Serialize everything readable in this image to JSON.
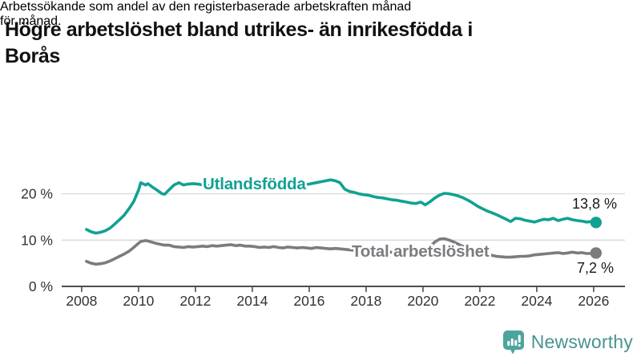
{
  "title": "Högre arbetslöshet bland utrikes- än inrikesfödda i Borås",
  "title_lines": [
    "Högre arbetslöshet bland utrikes- än inrikesfödda i",
    "Borås"
  ],
  "subtitle": "Arbetssökande som andel av den registerbaserade arbetskraften månad för månad.",
  "subtitle_lines": [
    "Arbetssökande som andel av den registerbaserade arbetskraften månad",
    "för månad."
  ],
  "branding": {
    "name": "Newsworthy",
    "icon": "newsworthy-bars-speech-bubble-icon",
    "color": "#47948e"
  },
  "colors": {
    "grid": "#d9d9d9",
    "axis": "#4d4d4d",
    "axis_text": "#333333",
    "value_text": "#1a1a1a",
    "series_teal": "#11a193",
    "series_gray": "#7b7b80"
  },
  "chart_data": {
    "type": "line",
    "title": "Högre arbetslöshet bland utrikes- än inrikesfödda i Borås",
    "subtitle": "Arbetssökande som andel av den registerbaserade arbetskraften månad för månad.",
    "unit": "%",
    "grid": "horizontal",
    "legend_position": "inline-labels",
    "xlim": [
      2007.3,
      2027.1
    ],
    "ylim": [
      0,
      24.6
    ],
    "x_tick_years": [
      2008,
      2010,
      2012,
      2014,
      2016,
      2018,
      2020,
      2022,
      2024,
      2026
    ],
    "x_ticks": [
      "2008",
      "2010",
      "2012",
      "2014",
      "2016",
      "2018",
      "2020",
      "2022",
      "2024",
      "2026"
    ],
    "y_ticks": [
      {
        "value": 0,
        "label": "0 %"
      },
      {
        "value": 10,
        "label": "10 %"
      },
      {
        "value": 20,
        "label": "20 %"
      }
    ],
    "x": [
      2008.17,
      2008.33,
      2008.5,
      2008.67,
      2008.83,
      2009.0,
      2009.17,
      2009.33,
      2009.5,
      2009.67,
      2009.83,
      2010.0,
      2010.08,
      2010.25,
      2010.33,
      2010.5,
      2010.67,
      2010.83,
      2010.92,
      2011.08,
      2011.25,
      2011.42,
      2011.58,
      2011.75,
      2011.92,
      2012.08,
      2012.25,
      2012.42,
      2012.58,
      2012.75,
      2012.92,
      2013.08,
      2013.25,
      2013.42,
      2013.58,
      2013.75,
      2013.92,
      2014.08,
      2014.25,
      2014.42,
      2014.58,
      2014.75,
      2014.92,
      2015.08,
      2015.25,
      2015.42,
      2015.58,
      2015.75,
      2015.92,
      2016.08,
      2016.25,
      2016.42,
      2016.58,
      2016.75,
      2016.92,
      2017.08,
      2017.25,
      2017.42,
      2017.58,
      2017.75,
      2017.92,
      2018.08,
      2018.25,
      2018.42,
      2018.58,
      2018.75,
      2018.92,
      2019.08,
      2019.25,
      2019.42,
      2019.58,
      2019.75,
      2019.92,
      2020.08,
      2020.25,
      2020.42,
      2020.58,
      2020.75,
      2020.92,
      2021.08,
      2021.25,
      2021.42,
      2021.58,
      2021.75,
      2021.92,
      2022.08,
      2022.25,
      2022.42,
      2022.58,
      2022.75,
      2022.92,
      2023.08,
      2023.25,
      2023.42,
      2023.58,
      2023.75,
      2023.92,
      2024.08,
      2024.25,
      2024.42,
      2024.58,
      2024.75,
      2024.92,
      2025.08,
      2025.25,
      2025.42,
      2025.58,
      2025.75,
      2025.92,
      2026.08
    ],
    "series": [
      {
        "name": "Utlandsfödda",
        "color": "#11a193",
        "end_label": "13,8 %",
        "last_value": 13.8,
        "values": [
          12.3,
          11.8,
          11.5,
          11.7,
          12.0,
          12.6,
          13.5,
          14.4,
          15.4,
          16.8,
          18.3,
          20.8,
          22.4,
          21.9,
          22.2,
          21.4,
          20.7,
          20.0,
          19.9,
          20.9,
          21.9,
          22.4,
          21.9,
          22.1,
          22.2,
          22.1,
          21.9,
          21.7,
          21.9,
          22.0,
          21.8,
          22.0,
          21.9,
          22.1,
          21.9,
          22.0,
          21.8,
          22.1,
          21.9,
          21.7,
          21.9,
          22.0,
          21.8,
          22.1,
          21.9,
          22.0,
          21.8,
          21.9,
          22.0,
          22.2,
          22.4,
          22.6,
          22.8,
          23.0,
          22.8,
          22.4,
          21.0,
          20.5,
          20.3,
          20.0,
          19.8,
          19.7,
          19.4,
          19.2,
          19.1,
          18.9,
          18.7,
          18.6,
          18.4,
          18.2,
          18.0,
          17.9,
          18.2,
          17.6,
          18.3,
          19.1,
          19.7,
          20.1,
          20.0,
          19.8,
          19.5,
          19.1,
          18.6,
          18.0,
          17.3,
          16.8,
          16.3,
          15.9,
          15.5,
          15.0,
          14.5,
          14.0,
          14.7,
          14.6,
          14.3,
          14.1,
          13.9,
          14.2,
          14.5,
          14.4,
          14.7,
          14.2,
          14.5,
          14.7,
          14.4,
          14.2,
          14.1,
          13.9,
          14.0,
          13.8
        ]
      },
      {
        "name": "Total arbetslöshet",
        "color": "#7b7b80",
        "end_label": "7,2 %",
        "last_value": 7.2,
        "values": [
          5.4,
          5.0,
          4.8,
          4.9,
          5.1,
          5.5,
          6.0,
          6.5,
          7.0,
          7.6,
          8.4,
          9.3,
          9.7,
          9.9,
          9.8,
          9.5,
          9.2,
          9.0,
          8.9,
          8.9,
          8.6,
          8.5,
          8.4,
          8.6,
          8.5,
          8.6,
          8.7,
          8.6,
          8.8,
          8.7,
          8.8,
          8.9,
          9.0,
          8.8,
          8.9,
          8.7,
          8.7,
          8.6,
          8.4,
          8.5,
          8.4,
          8.6,
          8.4,
          8.3,
          8.5,
          8.4,
          8.3,
          8.4,
          8.3,
          8.2,
          8.4,
          8.3,
          8.2,
          8.1,
          8.2,
          8.1,
          8.0,
          7.9,
          7.8,
          7.7,
          7.7,
          7.6,
          7.6,
          7.5,
          7.5,
          7.4,
          7.4,
          7.3,
          7.3,
          7.2,
          7.3,
          7.4,
          7.5,
          7.7,
          8.6,
          9.6,
          10.2,
          10.3,
          10.0,
          9.6,
          9.1,
          8.6,
          8.1,
          7.7,
          7.4,
          7.1,
          6.9,
          6.7,
          6.5,
          6.4,
          6.3,
          6.3,
          6.4,
          6.5,
          6.5,
          6.6,
          6.8,
          6.9,
          7.0,
          7.1,
          7.2,
          7.3,
          7.1,
          7.2,
          7.4,
          7.2,
          7.3,
          7.1,
          7.1,
          7.2
        ]
      }
    ]
  }
}
